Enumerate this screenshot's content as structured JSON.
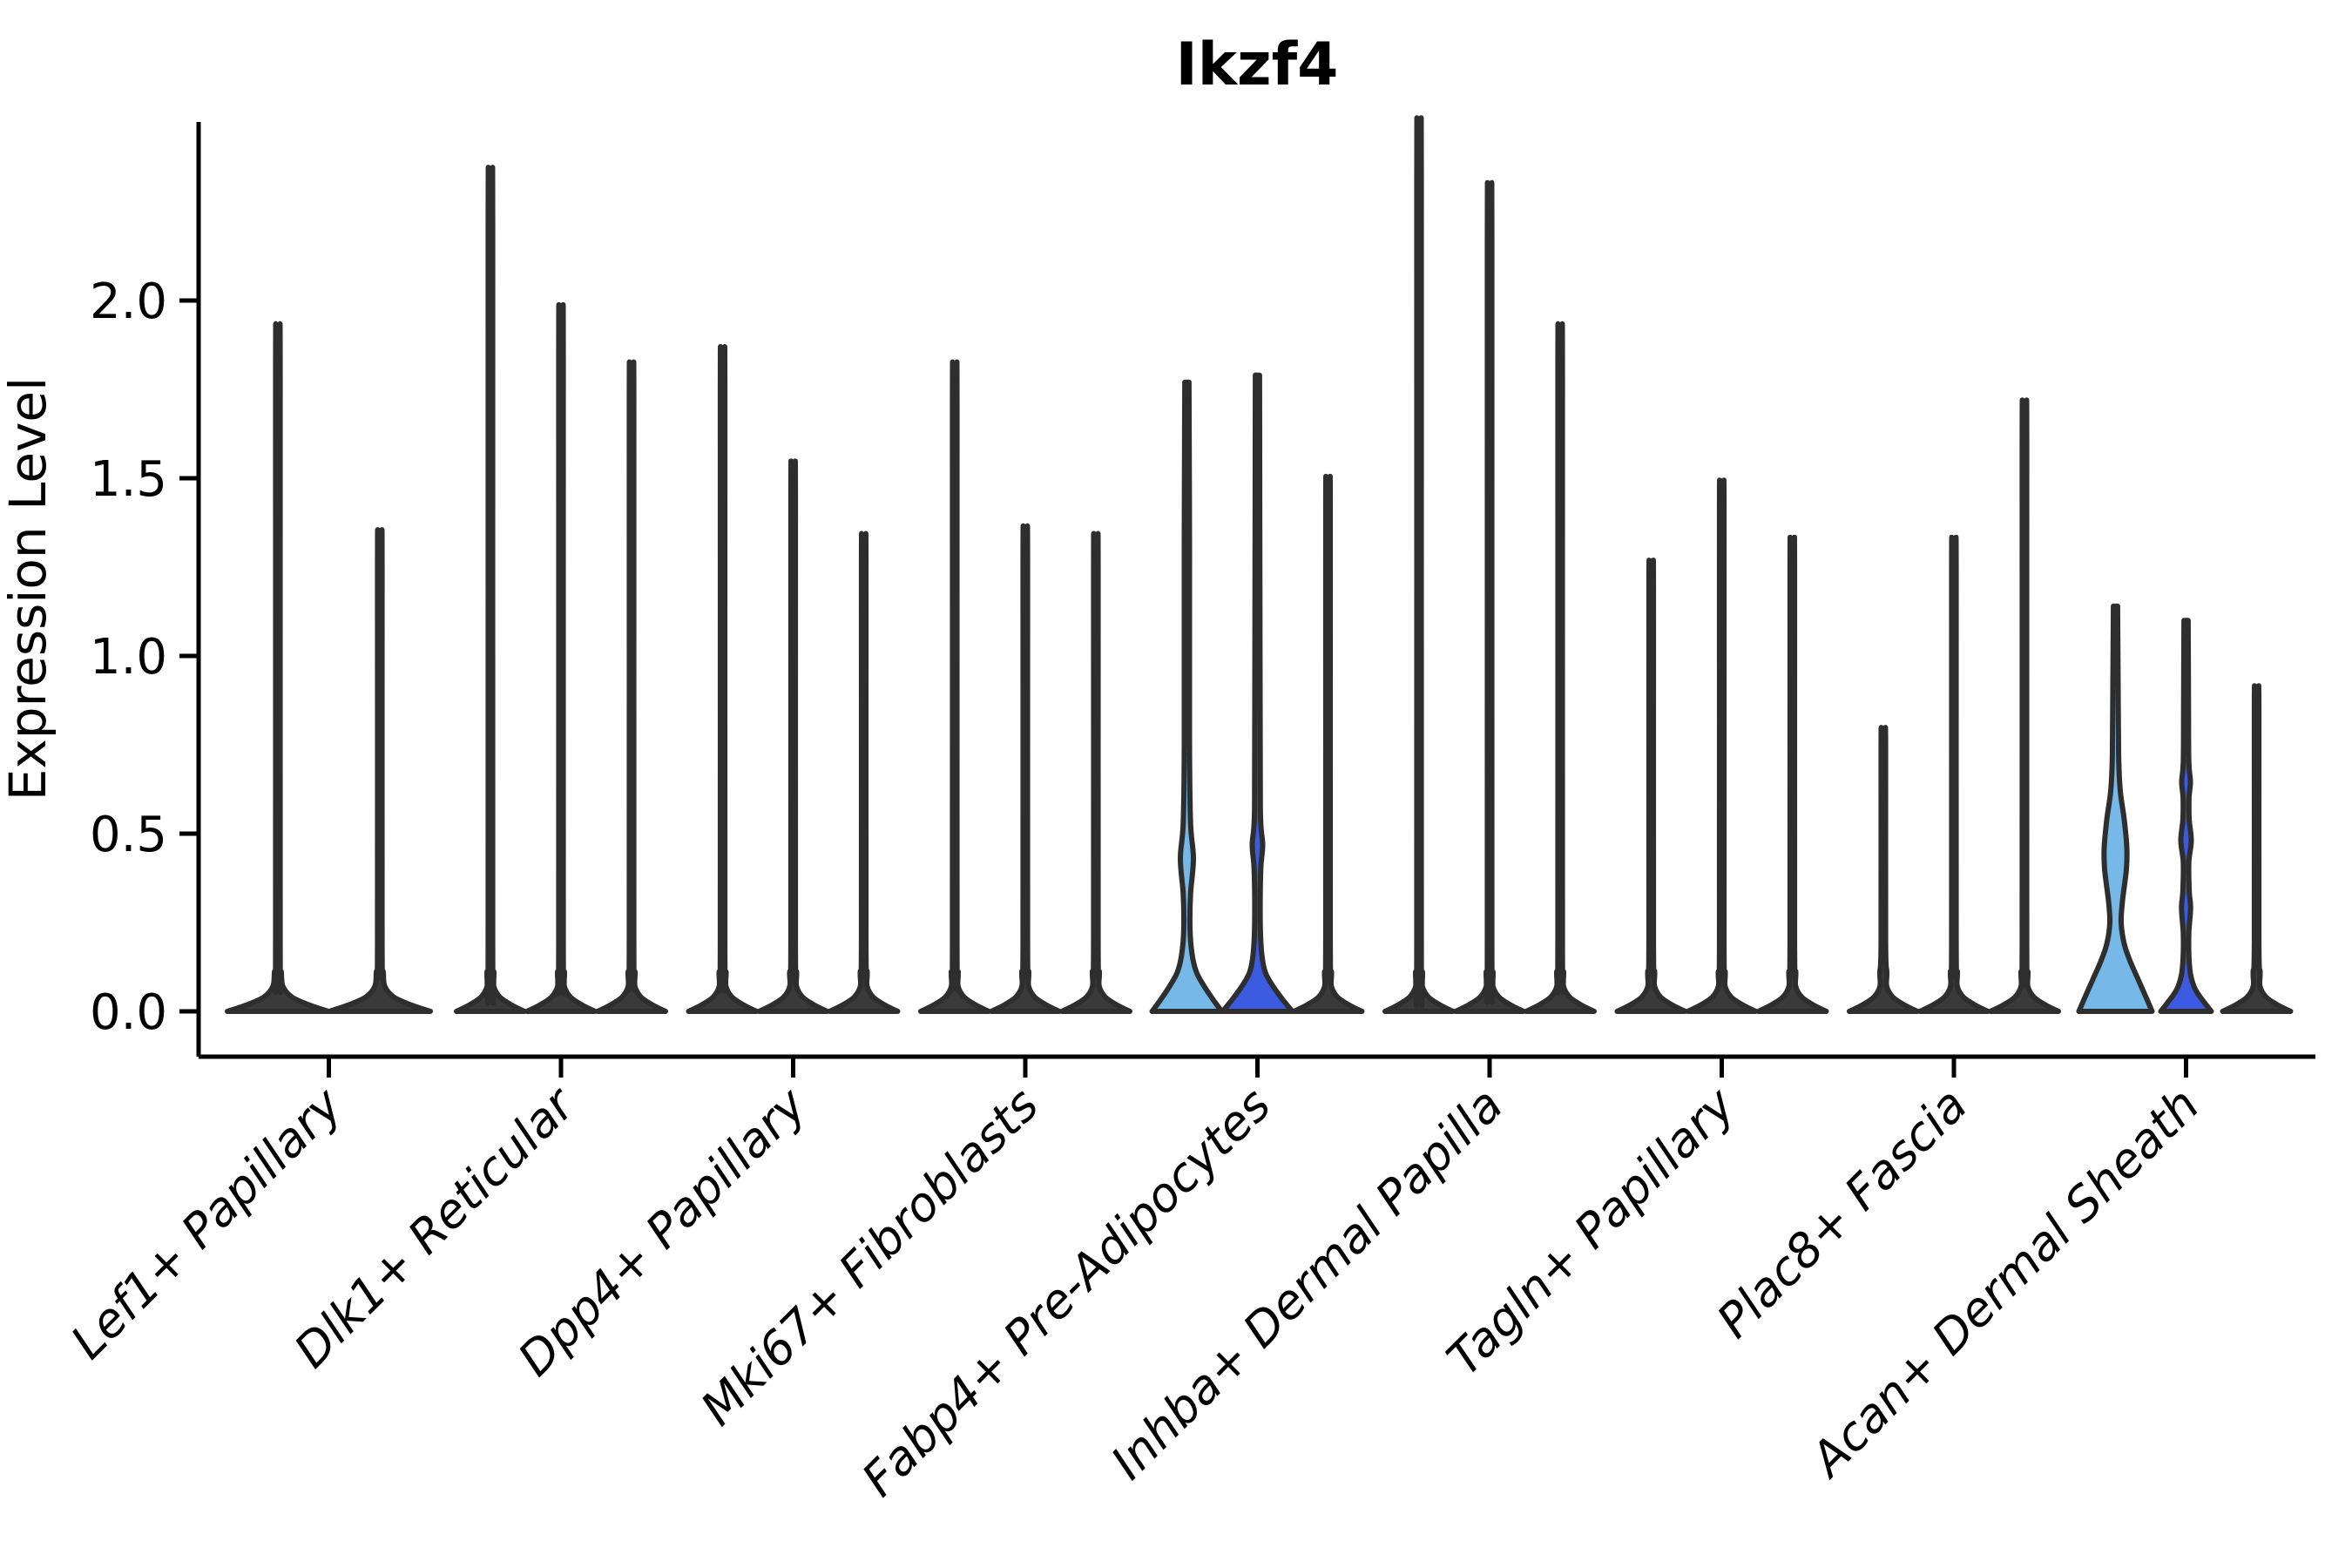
{
  "figure": {
    "title": "Ikzf4"
  },
  "chart_data": {
    "type": "violin",
    "title": "Ikzf4",
    "xlabel": "",
    "ylabel": "Expression Level",
    "ylim": [
      -0.13,
      2.5
    ],
    "grid": false,
    "legend": "none",
    "yticks": [
      {
        "label": "0.0",
        "value": 0.0
      },
      {
        "label": "0.5",
        "value": 0.5
      },
      {
        "label": "1.0",
        "value": 1.0
      },
      {
        "label": "1.5",
        "value": 1.5
      },
      {
        "label": "2.0",
        "value": 2.0
      }
    ],
    "categories": [
      "Lef1+ Papillary",
      "Dlk1+ Reticular",
      "Dpp4+ Papillary",
      "Mki67+ Fibroblasts",
      "Fabp4+ Pre-Adipocytes",
      "Inhba+ Dermal Papilla",
      "Tagln+ Papillary",
      "Plac8+ Fascia",
      "Acan+ Dermal Sheath"
    ],
    "colors": {
      "light_blue": "#76B9E8",
      "royal_blue": "#3B5CE1",
      "violin_dark": "#3A3A3A",
      "outline": "#2E2E2E",
      "axis": "#000000"
    },
    "groups": [
      {
        "category": "Lef1+ Papillary",
        "violins": [
          {
            "max": 1.85,
            "fill": "violin_dark"
          },
          {
            "max": 1.31,
            "fill": "violin_dark"
          }
        ]
      },
      {
        "category": "Dlk1+ Reticular",
        "violins": [
          {
            "max": 2.26,
            "fill": "violin_dark"
          },
          {
            "max": 1.9,
            "fill": "violin_dark"
          },
          {
            "max": 1.75,
            "fill": "violin_dark"
          }
        ]
      },
      {
        "category": "Dpp4+ Papillary",
        "violins": [
          {
            "max": 1.79,
            "fill": "violin_dark"
          },
          {
            "max": 1.49,
            "fill": "violin_dark"
          },
          {
            "max": 1.3,
            "fill": "violin_dark"
          }
        ]
      },
      {
        "category": "Mki67+ Fibroblasts",
        "violins": [
          {
            "max": 1.75,
            "fill": "violin_dark"
          },
          {
            "max": 1.32,
            "fill": "violin_dark"
          },
          {
            "max": 1.3,
            "fill": "violin_dark"
          }
        ]
      },
      {
        "category": "Fabp4+ Pre-Adipocytes",
        "violins": [
          {
            "max": 1.77,
            "fill": "light_blue",
            "profile": [
              [
                0,
                40
              ],
              [
                0.03,
                31
              ],
              [
                0.07,
                20
              ],
              [
                0.11,
                11
              ],
              [
                0.16,
                6
              ],
              [
                0.23,
                3.6
              ],
              [
                0.33,
                4.2
              ],
              [
                0.43,
                7.5
              ],
              [
                0.53,
                4.2
              ],
              [
                0.75,
                3
              ],
              [
                1.3,
                3
              ],
              [
                1.77,
                2.4
              ]
            ]
          },
          {
            "max": 1.79,
            "fill": "royal_blue",
            "profile": [
              [
                0,
                40
              ],
              [
                0.03,
                30
              ],
              [
                0.07,
                18
              ],
              [
                0.11,
                9
              ],
              [
                0.16,
                5
              ],
              [
                0.25,
                3.2
              ],
              [
                0.4,
                3.8
              ],
              [
                0.47,
                6
              ],
              [
                0.56,
                3.4
              ],
              [
                0.9,
                3
              ],
              [
                1.79,
                2.4
              ]
            ]
          },
          {
            "max": 1.45,
            "fill": "violin_dark"
          }
        ]
      },
      {
        "category": "Inhba+ Dermal Papilla",
        "violins": [
          {
            "max": 2.39,
            "fill": "violin_dark"
          },
          {
            "max": 2.22,
            "fill": "violin_dark"
          },
          {
            "max": 1.85,
            "fill": "violin_dark"
          }
        ]
      },
      {
        "category": "Tagln+ Papillary",
        "violins": [
          {
            "max": 1.23,
            "fill": "violin_dark"
          },
          {
            "max": 1.44,
            "fill": "violin_dark"
          },
          {
            "max": 1.29,
            "fill": "violin_dark"
          }
        ]
      },
      {
        "category": "Plac8+ Fascia",
        "violins": [
          {
            "max": 0.79,
            "fill": "violin_dark"
          },
          {
            "max": 1.29,
            "fill": "violin_dark"
          },
          {
            "max": 1.65,
            "fill": "violin_dark"
          }
        ]
      },
      {
        "category": "Acan+ Dermal Sheath",
        "violins": [
          {
            "max": 1.14,
            "fill": "light_blue",
            "profile": [
              [
                0,
                42
              ],
              [
                0.04,
                35
              ],
              [
                0.09,
                26
              ],
              [
                0.14,
                17
              ],
              [
                0.19,
                10
              ],
              [
                0.25,
                6.5
              ],
              [
                0.31,
                8
              ],
              [
                0.4,
                12.5
              ],
              [
                0.46,
                13
              ],
              [
                0.54,
                10
              ],
              [
                0.62,
                5.5
              ],
              [
                0.72,
                3.6
              ],
              [
                0.92,
                3
              ],
              [
                1.14,
                2.4
              ]
            ]
          },
          {
            "max": 1.1,
            "fill": "royal_blue",
            "profile": [
              [
                0,
                29
              ],
              [
                0.025,
                21
              ],
              [
                0.06,
                11
              ],
              [
                0.1,
                5.5
              ],
              [
                0.15,
                3.4
              ],
              [
                0.22,
                3.2
              ],
              [
                0.29,
                5.2
              ],
              [
                0.34,
                3.6
              ],
              [
                0.42,
                3.2
              ],
              [
                0.48,
                6
              ],
              [
                0.54,
                3.6
              ],
              [
                0.6,
                3.4
              ],
              [
                0.645,
                5
              ],
              [
                0.7,
                3.2
              ],
              [
                0.85,
                2.8
              ],
              [
                1.1,
                2.4
              ]
            ]
          },
          {
            "max": 0.9,
            "fill": "violin_dark"
          }
        ]
      }
    ]
  }
}
